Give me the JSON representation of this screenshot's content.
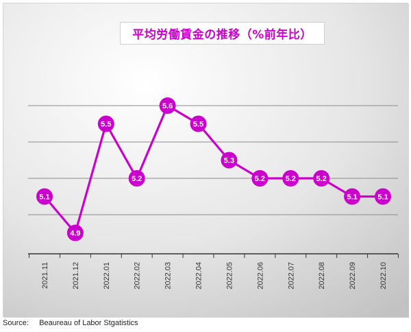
{
  "source_label": "Source:",
  "source_text": "Beaureau of Labor Stgatistics",
  "chart_data": {
    "type": "line",
    "title": "平均労働賃金の推移（%前年比）",
    "categories": [
      "2021.11",
      "2021.12",
      "2022.01",
      "2022.02",
      "2022.03",
      "2022.04",
      "2022.05",
      "2022.06",
      "2022.07",
      "2022.08",
      "2022.09",
      "2022.10"
    ],
    "series": [
      {
        "values": [
          5.1,
          4.9,
          5.5,
          5.2,
          5.6,
          5.5,
          5.3,
          5.2,
          5.2,
          5.2,
          5.1,
          5.1
        ]
      }
    ],
    "data_labels": [
      "5.1",
      "4.9",
      "5.5",
      "5.2",
      "5.6",
      "5.5",
      "5.3",
      "5.2",
      "5.2",
      "5.2",
      "5.1",
      "5.1"
    ],
    "ylim": [
      4.8,
      5.8
    ],
    "gridlines_y": [
      5.0,
      5.2,
      5.4,
      5.6
    ],
    "grid": true,
    "legend": "none",
    "colors": {
      "series": "#cc00cc",
      "label_text": "#ffffff",
      "grid": "#8a8a8a",
      "axis": "#333333",
      "plot_bg_light": "#ffffff",
      "plot_bg_dark": "#c2c2c2"
    }
  }
}
